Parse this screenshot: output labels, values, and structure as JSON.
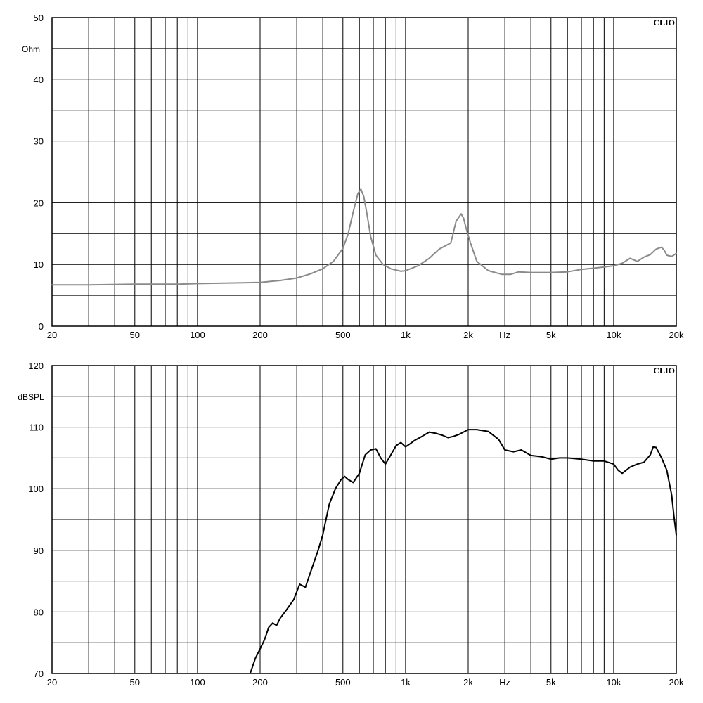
{
  "chart_data": [
    {
      "type": "line",
      "brand": "CLIO",
      "ylabel": "Ohm",
      "xlabel": "Hz",
      "x_scale": "log",
      "xlim": [
        20,
        20000
      ],
      "ylim": [
        0,
        50
      ],
      "grid": true,
      "line_color": "#8a8a8a",
      "y_ticks": [
        0,
        10,
        20,
        30,
        40,
        50
      ],
      "x_tick_labels": [
        "20",
        "50",
        "100",
        "200",
        "500",
        "1k",
        "2k",
        "Hz",
        "5k",
        "10k",
        "20k"
      ],
      "series": [
        {
          "x": [
            20,
            30,
            50,
            80,
            100,
            150,
            200,
            250,
            300,
            350,
            400,
            450,
            500,
            530,
            560,
            590,
            610,
            630,
            650,
            680,
            720,
            780,
            850,
            950,
            1000,
            1150,
            1300,
            1450,
            1550,
            1650,
            1750,
            1850,
            1900,
            1950,
            2050,
            2200,
            2500,
            2900,
            3200,
            3500,
            4000,
            5000,
            6000,
            7000,
            8000,
            9000,
            10000,
            11000,
            12000,
            13000,
            14000,
            15000,
            16000,
            17000,
            17500,
            18000,
            19000,
            20000
          ],
          "values": [
            6.7,
            6.7,
            6.8,
            6.8,
            6.9,
            7.0,
            7.1,
            7.4,
            7.8,
            8.5,
            9.3,
            10.5,
            12.6,
            15.0,
            18.5,
            21.5,
            22.2,
            21.0,
            18.5,
            14.5,
            11.5,
            10.0,
            9.3,
            8.9,
            9.0,
            9.8,
            11.0,
            12.5,
            13.0,
            13.5,
            17.0,
            18.2,
            17.5,
            16.0,
            13.5,
            10.5,
            9.0,
            8.4,
            8.4,
            8.8,
            8.7,
            8.7,
            8.8,
            9.2,
            9.4,
            9.6,
            9.8,
            10.2,
            11.0,
            10.5,
            11.2,
            11.6,
            12.5,
            12.8,
            12.3,
            11.5,
            11.3,
            11.8
          ]
        }
      ]
    },
    {
      "type": "line",
      "brand": "CLIO",
      "ylabel": "dBSPL",
      "xlabel": "Hz",
      "x_scale": "log",
      "xlim": [
        20,
        20000
      ],
      "ylim": [
        70,
        120
      ],
      "grid": true,
      "line_color": "#000000",
      "y_ticks": [
        70,
        80,
        90,
        100,
        110,
        120
      ],
      "x_tick_labels": [
        "20",
        "50",
        "100",
        "200",
        "500",
        "1k",
        "2k",
        "Hz",
        "5k",
        "10k",
        "20k"
      ],
      "series": [
        {
          "x": [
            180,
            190,
            200,
            210,
            220,
            230,
            240,
            250,
            270,
            290,
            310,
            330,
            350,
            380,
            400,
            430,
            460,
            490,
            510,
            530,
            560,
            600,
            640,
            680,
            720,
            760,
            800,
            850,
            900,
            950,
            1000,
            1050,
            1100,
            1200,
            1300,
            1400,
            1500,
            1600,
            1700,
            1800,
            2000,
            2200,
            2500,
            2800,
            3000,
            3300,
            3600,
            4000,
            4500,
            5000,
            5500,
            6000,
            7000,
            8000,
            9000,
            10000,
            10500,
            11000,
            12000,
            13000,
            14000,
            15000,
            15500,
            16000,
            17000,
            18000,
            19000,
            19500,
            20000
          ],
          "values": [
            70.2,
            72.5,
            74.0,
            75.5,
            77.5,
            78.2,
            77.8,
            79.0,
            80.5,
            82.0,
            84.5,
            84.0,
            86.5,
            90.0,
            92.5,
            97.5,
            100.0,
            101.5,
            102.0,
            101.5,
            101.0,
            102.5,
            105.5,
            106.3,
            106.5,
            105.0,
            104.0,
            105.5,
            107.0,
            107.5,
            106.8,
            107.3,
            107.8,
            108.5,
            109.2,
            109.0,
            108.7,
            108.3,
            108.5,
            108.8,
            109.6,
            109.6,
            109.3,
            108.0,
            106.3,
            106.0,
            106.3,
            105.4,
            105.2,
            104.8,
            105.0,
            105.0,
            104.8,
            104.5,
            104.5,
            104.0,
            103.0,
            102.5,
            103.5,
            104.0,
            104.3,
            105.5,
            106.8,
            106.7,
            105.0,
            103.0,
            99.0,
            95.5,
            92.5
          ]
        }
      ]
    }
  ]
}
